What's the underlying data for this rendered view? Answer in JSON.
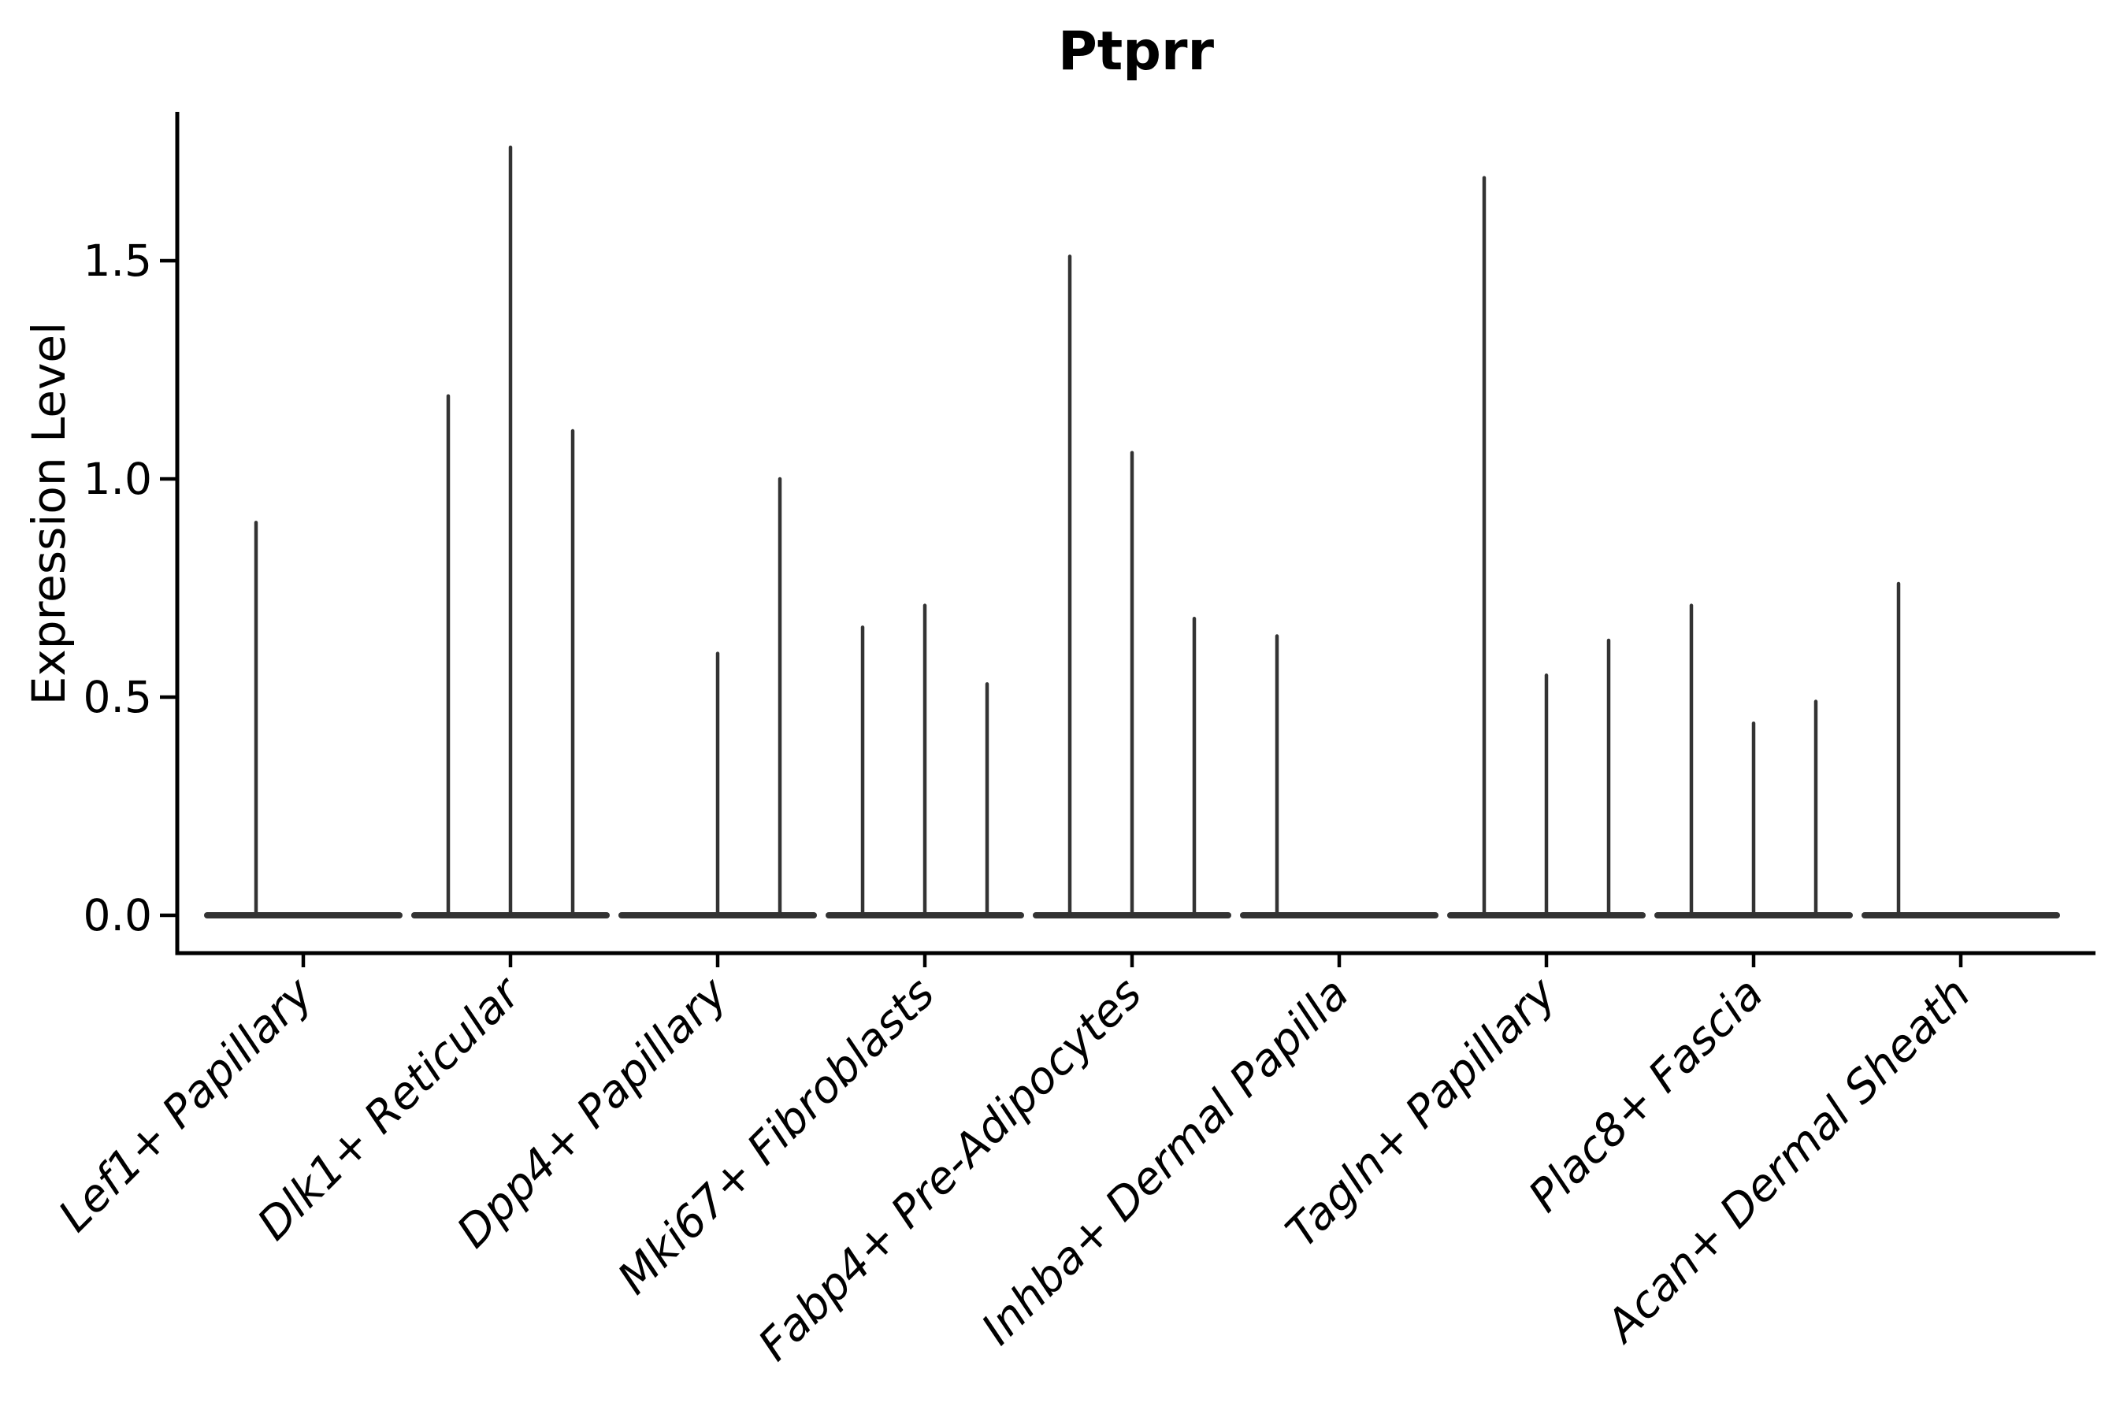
{
  "page": {
    "background": "#ffffff"
  },
  "chart_data": {
    "type": "violin",
    "title": "Ptprr",
    "ylabel": "Expression Level",
    "xlabel": "",
    "ylim": [
      0,
      1.84
    ],
    "grid": false,
    "legend": "none",
    "yticks": [
      {
        "value": 0.0,
        "label": "0.0"
      },
      {
        "value": 0.5,
        "label": "0.5"
      },
      {
        "value": 1.0,
        "label": "1.0"
      },
      {
        "value": 1.5,
        "label": "1.5"
      }
    ],
    "colors": {
      "violin": "#333333",
      "axis": "#000000",
      "text": "#000000"
    },
    "note": "Violin bodies are flat at expression 0; thin vertical lines mark the max expression extent of each sub-violin. dx is the horizontal offset of a sub-violin from the category center (px), max is expression level.",
    "categories": [
      "Lef1+ Papillary",
      "Dlk1+ Reticular",
      "Dpp4+ Papillary",
      "Mki67+ Fibroblasts",
      "Fabp4+ Pre-Adipocytes",
      "Inhba+ Dermal Papilla",
      "Tagln+ Papillary",
      "Plac8+ Fascia",
      "Acan+ Dermal Sheath"
    ],
    "groups": [
      {
        "label": "Lef1+ Papillary",
        "violins": [
          {
            "dx": -60,
            "max": 0.9
          }
        ]
      },
      {
        "label": "Dlk1+ Reticular",
        "violins": [
          {
            "dx": -79,
            "max": 1.19
          },
          {
            "dx": 0,
            "max": 1.76
          },
          {
            "dx": 79,
            "max": 1.11
          }
        ]
      },
      {
        "label": "Dpp4+ Papillary",
        "violins": [
          {
            "dx": 0,
            "max": 0.6
          },
          {
            "dx": 79,
            "max": 1.0
          }
        ]
      },
      {
        "label": "Mki67+ Fibroblasts",
        "violins": [
          {
            "dx": -79,
            "max": 0.66
          },
          {
            "dx": 0,
            "max": 0.71
          },
          {
            "dx": 79,
            "max": 0.53
          }
        ]
      },
      {
        "label": "Fabp4+ Pre-Adipocytes",
        "violins": [
          {
            "dx": -79,
            "max": 1.51
          },
          {
            "dx": 0,
            "max": 1.06
          },
          {
            "dx": 79,
            "max": 0.68
          }
        ]
      },
      {
        "label": "Inhba+ Dermal Papilla",
        "violins": [
          {
            "dx": -79,
            "max": 0.64
          }
        ]
      },
      {
        "label": "Tagln+ Papillary",
        "violins": [
          {
            "dx": -79,
            "max": 1.69
          },
          {
            "dx": 0,
            "max": 0.55
          },
          {
            "dx": 79,
            "max": 0.63
          }
        ]
      },
      {
        "label": "Plac8+ Fascia",
        "violins": [
          {
            "dx": -79,
            "max": 0.71
          },
          {
            "dx": 0,
            "max": 0.44
          },
          {
            "dx": 79,
            "max": 0.49
          }
        ]
      },
      {
        "label": "Acan+ Dermal Sheath",
        "violins": [
          {
            "dx": -79,
            "max": 0.76
          }
        ]
      }
    ]
  }
}
